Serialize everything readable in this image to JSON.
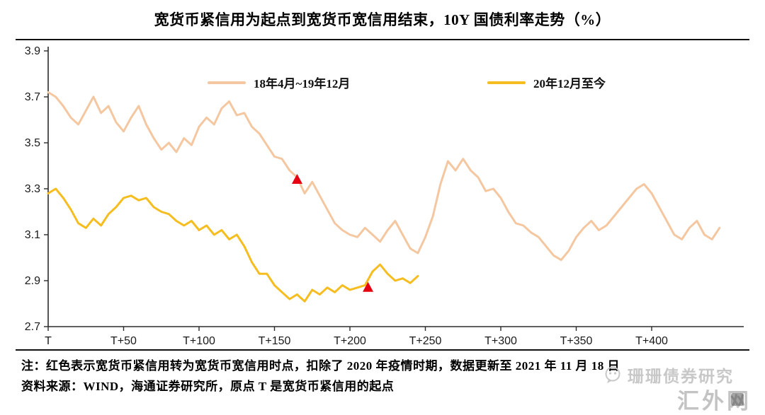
{
  "title": "宽货币紧信用为起点到宽货币宽信用结束，10Y 国债利率走势（%）",
  "notes": [
    "注：红色表示宽货币紧信用转为宽货币宽信用时点，扣除了 2020 年疫情时期，数据更新至 2021 年 11 月 18 日",
    "资料来源：WIND，海通证券研究所，原点 T 是宽货币紧信用的起点"
  ],
  "watermarks": {
    "wechat_account": "珊珊债券研究",
    "site": "汇外网"
  },
  "colors": {
    "series1": "#F4C7A0",
    "series2": "#F5BD1F",
    "marker": "#E60012",
    "axis": "#2b2b2b",
    "watermark": "#c6c6c6"
  },
  "chart_data": {
    "type": "line",
    "title": "宽货币紧信用为起点到宽货币宽信用结束，10Y 国债利率走势（%）",
    "xlabel": "",
    "ylabel": "",
    "ylim": [
      2.7,
      3.9
    ],
    "y_ticks": [
      2.7,
      2.9,
      3.1,
      3.3,
      3.5,
      3.7,
      3.9
    ],
    "x_ticks": [
      {
        "t": 0,
        "label": "T"
      },
      {
        "t": 50,
        "label": "T+50"
      },
      {
        "t": 100,
        "label": "T+100"
      },
      {
        "t": 150,
        "label": "T+150"
      },
      {
        "t": 200,
        "label": "T+200"
      },
      {
        "t": 250,
        "label": "T+250"
      },
      {
        "t": 300,
        "label": "T+300"
      },
      {
        "t": 350,
        "label": "T+350"
      },
      {
        "t": 400,
        "label": "T+400"
      }
    ],
    "grid": false,
    "legend_position": "top-inside",
    "series": [
      {
        "name": "18年4月~19年12月",
        "color": "#F4C7A0",
        "x0": 0,
        "dx": 5,
        "values": [
          3.72,
          3.7,
          3.66,
          3.61,
          3.58,
          3.64,
          3.7,
          3.63,
          3.66,
          3.59,
          3.55,
          3.61,
          3.66,
          3.58,
          3.52,
          3.47,
          3.5,
          3.46,
          3.52,
          3.49,
          3.57,
          3.61,
          3.58,
          3.65,
          3.68,
          3.62,
          3.63,
          3.57,
          3.54,
          3.49,
          3.44,
          3.43,
          3.38,
          3.35,
          3.28,
          3.33,
          3.27,
          3.21,
          3.15,
          3.12,
          3.1,
          3.09,
          3.13,
          3.1,
          3.07,
          3.12,
          3.16,
          3.1,
          3.04,
          3.02,
          3.09,
          3.18,
          3.32,
          3.42,
          3.38,
          3.43,
          3.38,
          3.35,
          3.29,
          3.3,
          3.26,
          3.2,
          3.15,
          3.14,
          3.11,
          3.09,
          3.05,
          3.01,
          2.99,
          3.03,
          3.09,
          3.13,
          3.16,
          3.12,
          3.14,
          3.18,
          3.22,
          3.26,
          3.3,
          3.32,
          3.28,
          3.22,
          3.16,
          3.1,
          3.08,
          3.13,
          3.16,
          3.1,
          3.08,
          3.13
        ]
      },
      {
        "name": "20年12月至今",
        "color": "#F5BD1F",
        "x0": 0,
        "dx": 5,
        "values": [
          3.28,
          3.3,
          3.26,
          3.21,
          3.15,
          3.13,
          3.17,
          3.14,
          3.19,
          3.22,
          3.26,
          3.27,
          3.25,
          3.26,
          3.22,
          3.2,
          3.19,
          3.16,
          3.14,
          3.16,
          3.12,
          3.14,
          3.1,
          3.12,
          3.08,
          3.1,
          3.05,
          2.98,
          2.93,
          2.93,
          2.88,
          2.85,
          2.82,
          2.84,
          2.81,
          2.86,
          2.84,
          2.87,
          2.85,
          2.88,
          2.86,
          2.87,
          2.88,
          2.94,
          2.97,
          2.93,
          2.9,
          2.91,
          2.89,
          2.92
        ]
      }
    ],
    "markers": [
      {
        "x": 165,
        "y": 3.34,
        "color": "#E60012",
        "shape": "triangle-up"
      },
      {
        "x": 212,
        "y": 2.87,
        "color": "#E60012",
        "shape": "triangle-up"
      }
    ]
  }
}
